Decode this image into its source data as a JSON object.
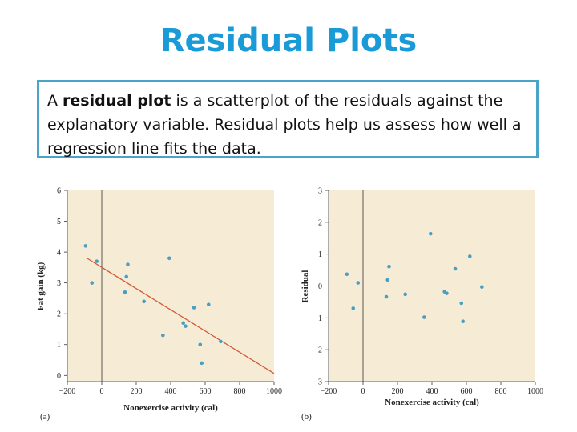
{
  "slide": {
    "title": "Residual Plots",
    "definition": {
      "prefix": "A ",
      "term": "residual plot",
      "rest": " is a scatterplot of the residuals against the explanatory variable. Residual plots help us assess how well a regression line fits the data."
    }
  },
  "chart_data": [
    {
      "type": "scatter",
      "panel_label": "(a)",
      "xlabel": "Nonexercise activity (cal)",
      "ylabel": "Fat gain (kg)",
      "xlim": [
        -200,
        1000
      ],
      "ylim": [
        -0.2,
        6
      ],
      "xticks": [
        -200,
        0,
        200,
        400,
        600,
        800,
        1000
      ],
      "yticks": [
        0,
        1,
        2,
        3,
        4,
        5,
        6
      ],
      "regression_line": {
        "intercept": 3.505,
        "slope": -0.00344
      },
      "points": [
        {
          "x": -94,
          "y": 4.2
        },
        {
          "x": -57,
          "y": 3.0
        },
        {
          "x": -29,
          "y": 3.7
        },
        {
          "x": 135,
          "y": 2.7
        },
        {
          "x": 143,
          "y": 3.2
        },
        {
          "x": 151,
          "y": 3.6
        },
        {
          "x": 245,
          "y": 2.4
        },
        {
          "x": 355,
          "y": 1.3
        },
        {
          "x": 392,
          "y": 3.8
        },
        {
          "x": 473,
          "y": 1.7
        },
        {
          "x": 486,
          "y": 1.6
        },
        {
          "x": 535,
          "y": 2.2
        },
        {
          "x": 571,
          "y": 1.0
        },
        {
          "x": 580,
          "y": 0.4
        },
        {
          "x": 620,
          "y": 2.3
        },
        {
          "x": 690,
          "y": 1.1
        }
      ]
    },
    {
      "type": "scatter",
      "panel_label": "(b)",
      "xlabel": "Nonexercise activity (cal)",
      "ylabel": "Residual",
      "xlim": [
        -200,
        1000
      ],
      "ylim": [
        -3,
        3
      ],
      "xticks": [
        -200,
        0,
        200,
        400,
        600,
        800,
        1000
      ],
      "yticks": [
        -3,
        -2,
        -1,
        0,
        1,
        2,
        3
      ],
      "points": [
        {
          "x": -94,
          "y": 0.37
        },
        {
          "x": -57,
          "y": -0.7
        },
        {
          "x": -29,
          "y": 0.1
        },
        {
          "x": 135,
          "y": -0.34
        },
        {
          "x": 143,
          "y": 0.19
        },
        {
          "x": 151,
          "y": 0.61
        },
        {
          "x": 245,
          "y": -0.26
        },
        {
          "x": 355,
          "y": -0.98
        },
        {
          "x": 392,
          "y": 1.64
        },
        {
          "x": 473,
          "y": -0.18
        },
        {
          "x": 486,
          "y": -0.23
        },
        {
          "x": 535,
          "y": 0.54
        },
        {
          "x": 571,
          "y": -0.54
        },
        {
          "x": 580,
          "y": -1.11
        },
        {
          "x": 620,
          "y": 0.93
        },
        {
          "x": 690,
          "y": -0.03
        }
      ]
    }
  ],
  "colors": {
    "title": "#1a9bd7",
    "box_border": "#4aa3c8",
    "plot_bg": "#f6ecd6",
    "point": "#4a9ec2",
    "line": "#d15a3a",
    "axis": "#333333"
  }
}
